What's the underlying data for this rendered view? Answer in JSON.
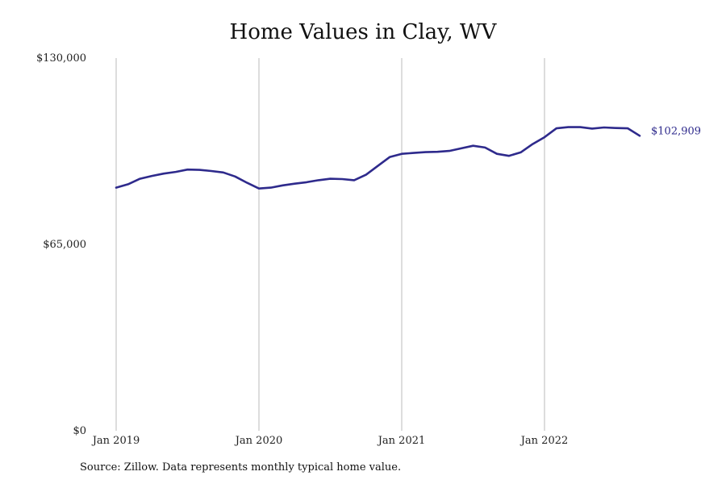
{
  "chart_data": {
    "type": "line",
    "title": "Home Values in Clay, WV",
    "source": "Source: Zillow. Data represents monthly typical home value.",
    "ylim": [
      0,
      130000
    ],
    "yticks": [
      {
        "value": 0,
        "label": "$0"
      },
      {
        "value": 65000,
        "label": "$65,000"
      },
      {
        "value": 130000,
        "label": "$130,000"
      }
    ],
    "xticks": [
      {
        "month_index": 0,
        "label": "Jan 2019"
      },
      {
        "month_index": 12,
        "label": "Jan 2020"
      },
      {
        "month_index": 24,
        "label": "Jan 2021"
      },
      {
        "month_index": 36,
        "label": "Jan 2022"
      }
    ],
    "grid": "vertical at x ticks",
    "line_color": "#2e2a8c",
    "grid_color": "#bbbbbb",
    "end_label": "$102,909",
    "series": [
      {
        "x": [
          "2019-01",
          "2019-02",
          "2019-03",
          "2019-04",
          "2019-05",
          "2019-06",
          "2019-07",
          "2019-08",
          "2019-09",
          "2019-10",
          "2019-11",
          "2019-12",
          "2020-01",
          "2020-02",
          "2020-03",
          "2020-04",
          "2020-05",
          "2020-06",
          "2020-07",
          "2020-08",
          "2020-09",
          "2020-10",
          "2020-11",
          "2020-12",
          "2021-01",
          "2021-02",
          "2021-03",
          "2021-04",
          "2021-05",
          "2021-06",
          "2021-07",
          "2021-08",
          "2021-09",
          "2021-10",
          "2021-11",
          "2021-12",
          "2022-01",
          "2022-02",
          "2022-03",
          "2022-04",
          "2022-05",
          "2022-06",
          "2022-07",
          "2022-08",
          "2022-09"
        ],
        "values": [
          84800,
          86000,
          87900,
          88900,
          89700,
          90300,
          91100,
          91000,
          90600,
          90100,
          88700,
          86500,
          84500,
          84800,
          85600,
          86200,
          86700,
          87400,
          87900,
          87800,
          87400,
          89300,
          92400,
          95500,
          96600,
          96900,
          97200,
          97300,
          97600,
          98500,
          99400,
          98800,
          96600,
          95900,
          97100,
          100000,
          102400,
          105500,
          105900,
          105900,
          105400,
          105800,
          105600,
          105500,
          102909
        ]
      }
    ]
  }
}
